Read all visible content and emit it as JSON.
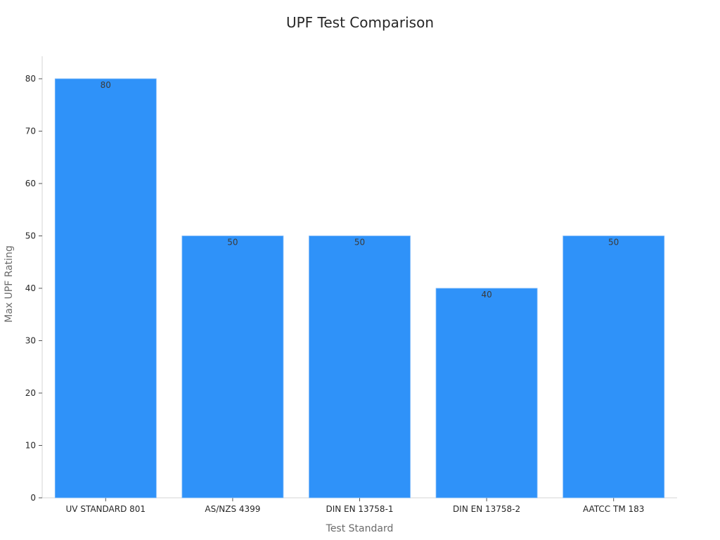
{
  "chart_data": {
    "type": "bar",
    "title": "UPF Test Comparison",
    "xlabel": "Test Standard",
    "ylabel": "Max UPF Rating",
    "categories": [
      "UV STANDARD 801",
      "AS/NZS 4399",
      "DIN EN 13758-1",
      "DIN EN 13758-2",
      "AATCC TM 183"
    ],
    "values": [
      80,
      50,
      50,
      40,
      50
    ],
    "data_labels": [
      "80",
      "50",
      "50",
      "40",
      "50"
    ],
    "yticks": [
      0,
      10,
      20,
      30,
      40,
      50,
      60,
      70,
      80
    ],
    "ylim": [
      0,
      84
    ],
    "grid": false,
    "bar_color": "#2f92f9",
    "axis_color": "#d6d6d6"
  }
}
